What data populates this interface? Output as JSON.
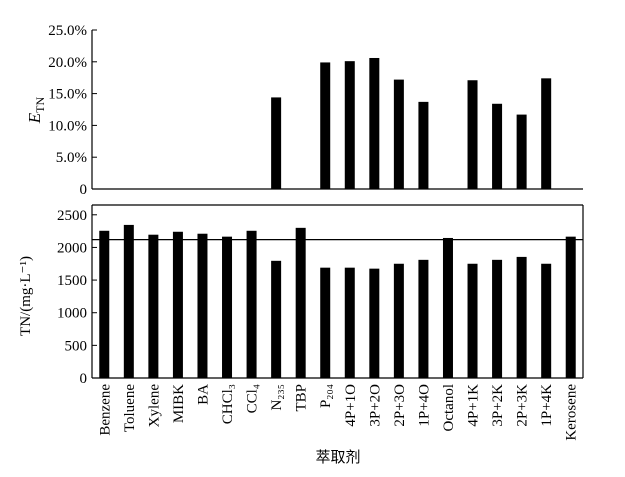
{
  "chart_data": [
    {
      "type": "bar",
      "ylabel_main": "E",
      "ylabel_sub": "TN",
      "color": "#000000",
      "values": [
        0,
        0,
        0,
        0,
        0,
        0,
        0,
        14.4,
        0,
        19.9,
        20.1,
        20.6,
        17.2,
        13.7,
        0,
        17.1,
        13.4,
        11.7,
        17.4,
        0
      ],
      "ylim": [
        0,
        25
      ],
      "yticks": [
        0,
        {
          "value": 5,
          "label": "5.0%"
        },
        {
          "value": 10,
          "label": "10.0%"
        },
        {
          "value": 15,
          "label": "15.0%"
        },
        {
          "value": 20,
          "label": "20.0%"
        },
        {
          "value": 25,
          "label": "25.0%"
        }
      ]
    },
    {
      "type": "bar",
      "ylabel": "TN/(mg·L⁻¹)",
      "xlabel": "萃取剂",
      "color": "#000000",
      "categories": [
        "Benzene",
        "Toluene",
        "Xylene",
        "MIBK",
        "BA",
        "CHCl₃",
        "CCl₄",
        "N₂₃₅",
        "TBP",
        "P₂₀₄",
        "4P+1O",
        "3P+2O",
        "2P+3O",
        "1P+4O",
        "Octanol",
        "4P+1K",
        "3P+2K",
        "2P+3K",
        "1P+4K",
        "Kerosene"
      ],
      "values": [
        2255,
        2345,
        2195,
        2240,
        2210,
        2165,
        2255,
        1795,
        2300,
        1690,
        1690,
        1675,
        1750,
        1810,
        2145,
        1750,
        1810,
        1855,
        1750,
        2165
      ],
      "reference_line": 2120,
      "ylim": [
        0,
        2650
      ],
      "yticks": [
        0,
        500,
        1000,
        1500,
        2000,
        2500
      ]
    }
  ]
}
